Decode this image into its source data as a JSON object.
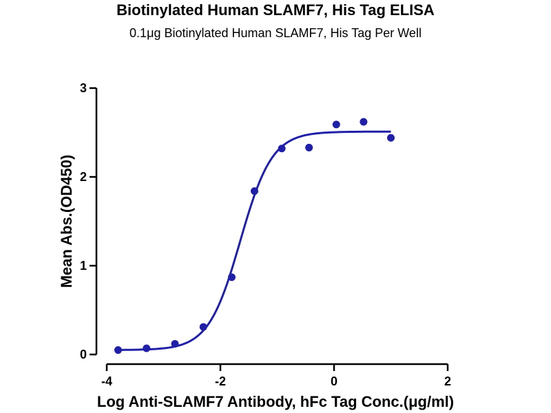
{
  "chart_data": {
    "type": "scatter",
    "title": "Biotinylated Human SLAMF7, His Tag ELISA",
    "subtitle": "0.1μg Biotinylated Human SLAMF7, His Tag Per Well",
    "xlabel": "Log Anti-SLAMF7 Antibody, hFc Tag Conc.(μg/ml)",
    "ylabel": "Mean Abs.(OD450)",
    "xlim": [
      -4,
      2
    ],
    "ylim": [
      0,
      3
    ],
    "xticks": [
      -4,
      -2,
      0,
      2
    ],
    "xtick_labels": [
      "-4",
      "-2",
      "0",
      "2"
    ],
    "yticks": [
      0,
      1,
      2,
      3
    ],
    "ytick_labels": [
      "0",
      "1",
      "2",
      "3"
    ],
    "grid": false,
    "color": "#1f1fa8",
    "series": [
      {
        "x": [
          -3.8,
          -3.3,
          -2.8,
          -2.3,
          -1.8,
          -1.4,
          -0.92,
          -0.44,
          0.04,
          0.52,
          1.0
        ],
        "y": [
          0.05,
          0.07,
          0.12,
          0.31,
          0.87,
          1.84,
          2.32,
          2.33,
          2.59,
          2.62,
          2.44
        ]
      }
    ],
    "fit": {
      "type": "4PL",
      "bottom": 0.05,
      "top": 2.51,
      "logEC50": -1.65,
      "hill": 1.55,
      "x_range": [
        -3.8,
        1.0
      ]
    }
  }
}
